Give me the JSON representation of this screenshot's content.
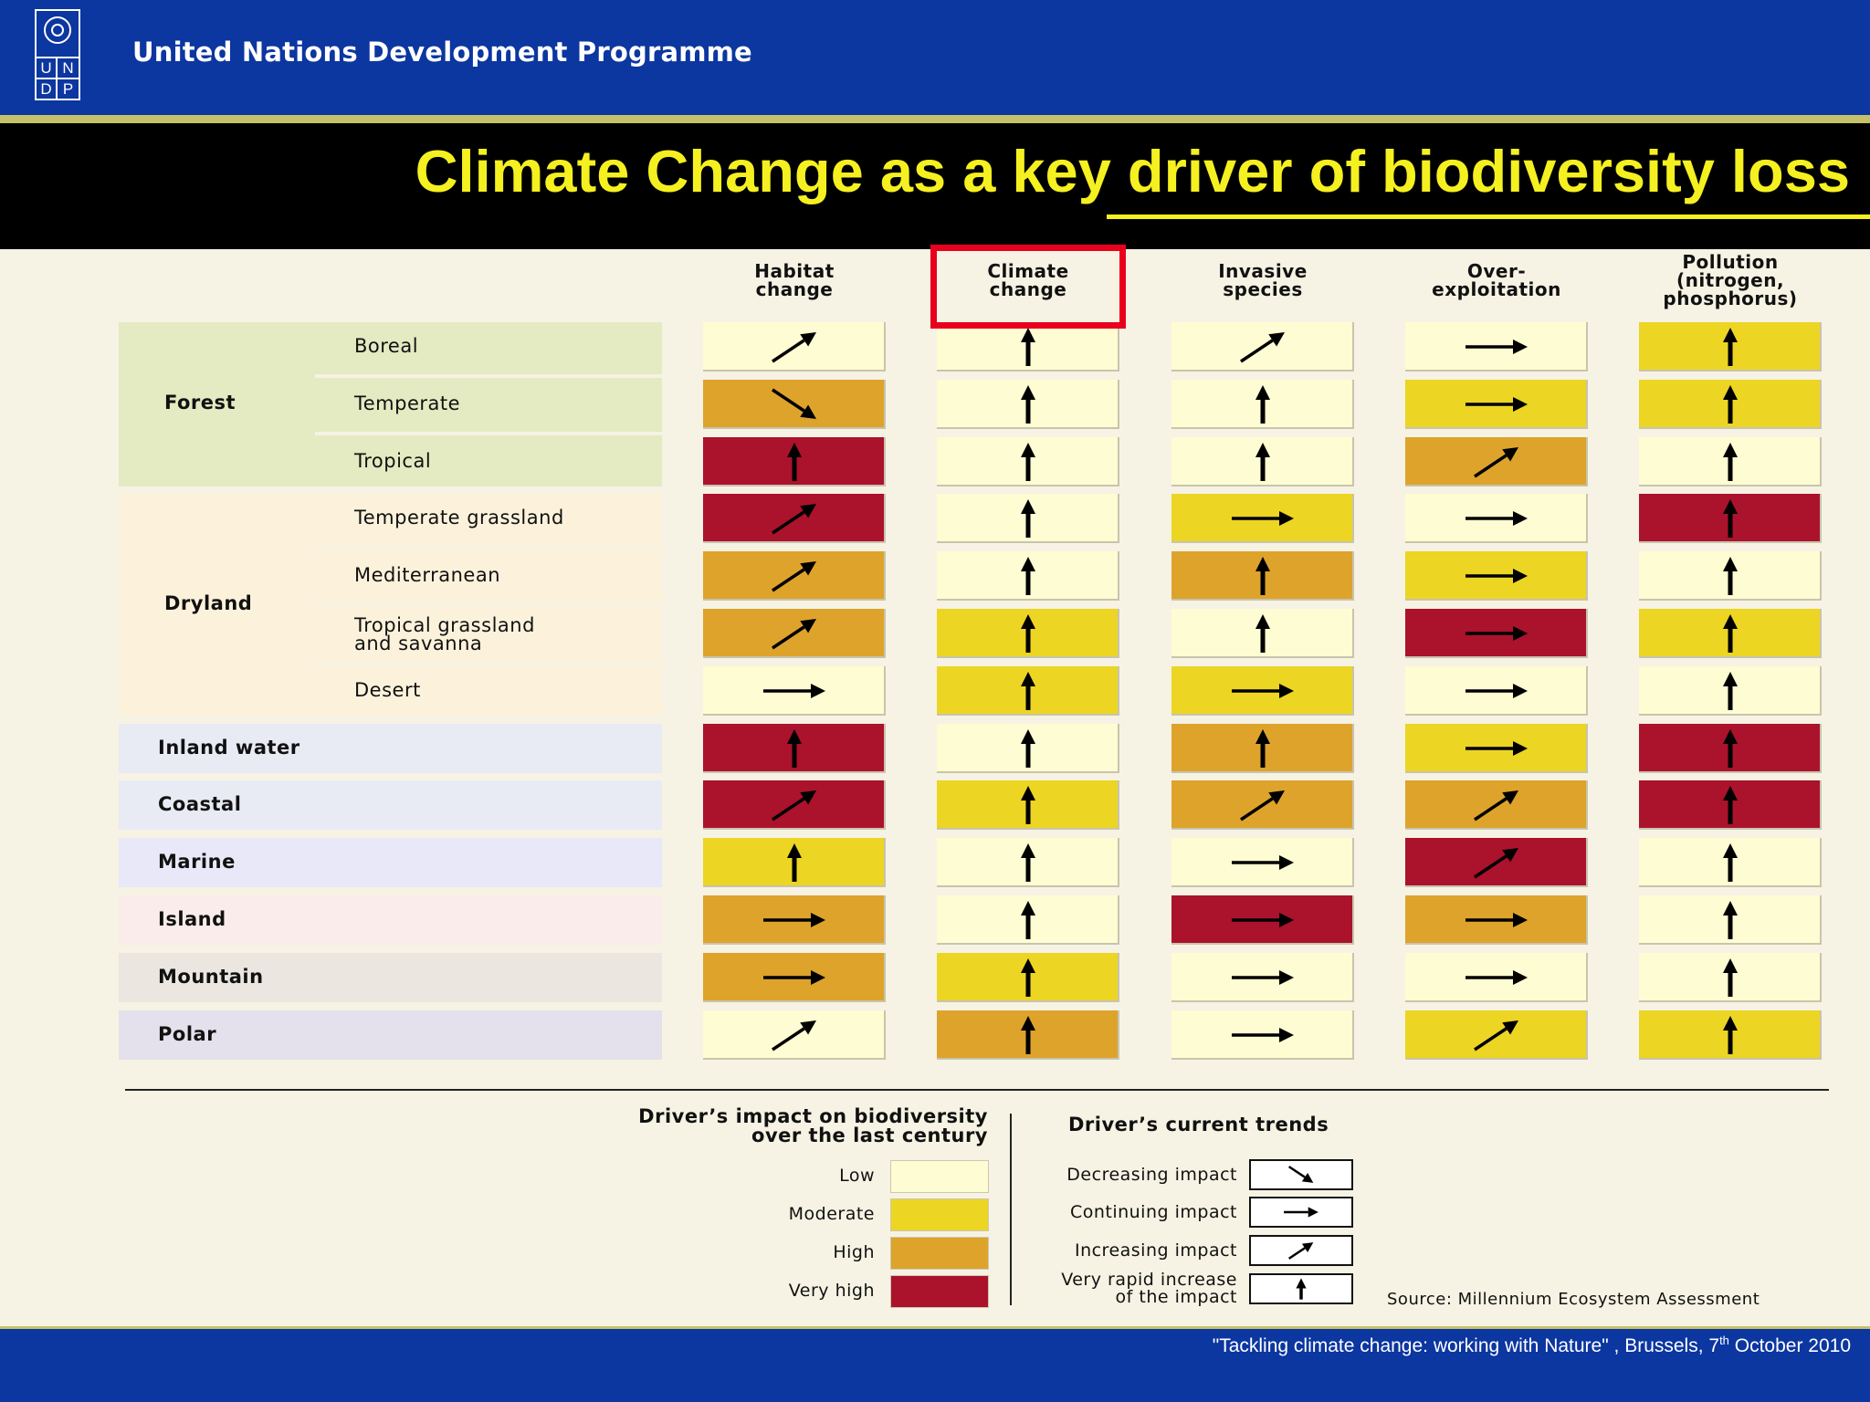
{
  "header": {
    "organization": "United Nations Development Programme",
    "logo_letters": [
      "U",
      "N",
      "D",
      "P"
    ]
  },
  "title": "Climate Change as a key driver of biodiversity loss",
  "colors": {
    "Low": "#fefcd2",
    "Moderate": "#ecd523",
    "High": "#dea32b",
    "Very high": "#ab122b",
    "highlight": "#e8001c"
  },
  "chart_data": {
    "type": "table",
    "columns": [
      "Habitat\nchange",
      "Climate\nchange",
      "Invasive\nspecies",
      "Over-\nexploitation",
      "Pollution\n(nitrogen,\nphosphorus)"
    ],
    "highlighted_column": "Climate\nchange",
    "groups": [
      {
        "label": "Forest",
        "bg": "#e4eac1",
        "rows": [
          {
            "label": "Boreal",
            "impact": [
              "Low",
              "Low",
              "Low",
              "Low",
              "Moderate"
            ],
            "trend": [
              "increasing",
              "very_rapid",
              "increasing",
              "continuing",
              "very_rapid"
            ]
          },
          {
            "label": "Temperate",
            "impact": [
              "High",
              "Low",
              "Low",
              "Moderate",
              "Moderate"
            ],
            "trend": [
              "decreasing",
              "very_rapid",
              "very_rapid",
              "continuing",
              "very_rapid"
            ]
          },
          {
            "label": "Tropical",
            "impact": [
              "Very high",
              "Low",
              "Low",
              "High",
              "Low"
            ],
            "trend": [
              "very_rapid",
              "very_rapid",
              "very_rapid",
              "increasing",
              "very_rapid"
            ]
          }
        ]
      },
      {
        "label": "Dryland",
        "bg": "#fcf2dc",
        "rows": [
          {
            "label": "Temperate grassland",
            "impact": [
              "Very high",
              "Low",
              "Moderate",
              "Low",
              "Very high"
            ],
            "trend": [
              "increasing",
              "very_rapid",
              "continuing",
              "continuing",
              "very_rapid"
            ]
          },
          {
            "label": "Mediterranean",
            "impact": [
              "High",
              "Low",
              "High",
              "Moderate",
              "Low"
            ],
            "trend": [
              "increasing",
              "very_rapid",
              "very_rapid",
              "continuing",
              "very_rapid"
            ]
          },
          {
            "label": "Tropical grassland\nand savanna",
            "impact": [
              "High",
              "Moderate",
              "Low",
              "Very high",
              "Moderate"
            ],
            "trend": [
              "increasing",
              "very_rapid",
              "very_rapid",
              "continuing",
              "very_rapid"
            ]
          },
          {
            "label": "Desert",
            "impact": [
              "Low",
              "Moderate",
              "Moderate",
              "Low",
              "Low"
            ],
            "trend": [
              "continuing",
              "very_rapid",
              "continuing",
              "continuing",
              "very_rapid"
            ]
          }
        ]
      }
    ],
    "single_rows": [
      {
        "label": "Inland water",
        "bg": "#e8eaf4",
        "impact": [
          "Very high",
          "Low",
          "High",
          "Moderate",
          "Very high"
        ],
        "trend": [
          "very_rapid",
          "very_rapid",
          "very_rapid",
          "continuing",
          "very_rapid"
        ]
      },
      {
        "label": "Coastal",
        "bg": "#e8eaf4",
        "impact": [
          "Very high",
          "Moderate",
          "High",
          "High",
          "Very high"
        ],
        "trend": [
          "increasing",
          "very_rapid",
          "increasing",
          "increasing",
          "very_rapid"
        ]
      },
      {
        "label": "Marine",
        "bg": "#e8e8f8",
        "impact": [
          "Moderate",
          "Low",
          "Low",
          "Very high",
          "Low"
        ],
        "trend": [
          "very_rapid",
          "very_rapid",
          "continuing",
          "increasing",
          "very_rapid"
        ]
      },
      {
        "label": "Island",
        "bg": "#f9ecea",
        "impact": [
          "High",
          "Low",
          "Very high",
          "High",
          "Low"
        ],
        "trend": [
          "continuing",
          "very_rapid",
          "continuing",
          "continuing",
          "very_rapid"
        ]
      },
      {
        "label": "Mountain",
        "bg": "#ebe6df",
        "impact": [
          "High",
          "Moderate",
          "Low",
          "Low",
          "Low"
        ],
        "trend": [
          "continuing",
          "very_rapid",
          "continuing",
          "continuing",
          "very_rapid"
        ]
      },
      {
        "label": "Polar",
        "bg": "#e4e0ec",
        "impact": [
          "Low",
          "High",
          "Low",
          "Moderate",
          "Moderate"
        ],
        "trend": [
          "increasing",
          "very_rapid",
          "continuing",
          "increasing",
          "very_rapid"
        ]
      }
    ]
  },
  "legend": {
    "impact_title": "Driver’s impact on biodiversity\nover the last century",
    "impact_levels": [
      "Low",
      "Moderate",
      "High",
      "Very high"
    ],
    "trend_title": "Driver’s current trends",
    "trends": [
      {
        "key": "decreasing",
        "label": "Decreasing impact"
      },
      {
        "key": "continuing",
        "label": "Continuing impact"
      },
      {
        "key": "increasing",
        "label": "Increasing impact"
      },
      {
        "key": "very_rapid",
        "label": "Very rapid increase\nof the impact"
      }
    ]
  },
  "source": "Source: Millennium Ecosystem Assessment",
  "footer": {
    "prefix": "\"Tackling climate change: working with Nature\" , Brussels, 7",
    "sup": "th",
    "suffix": " October 2010"
  }
}
